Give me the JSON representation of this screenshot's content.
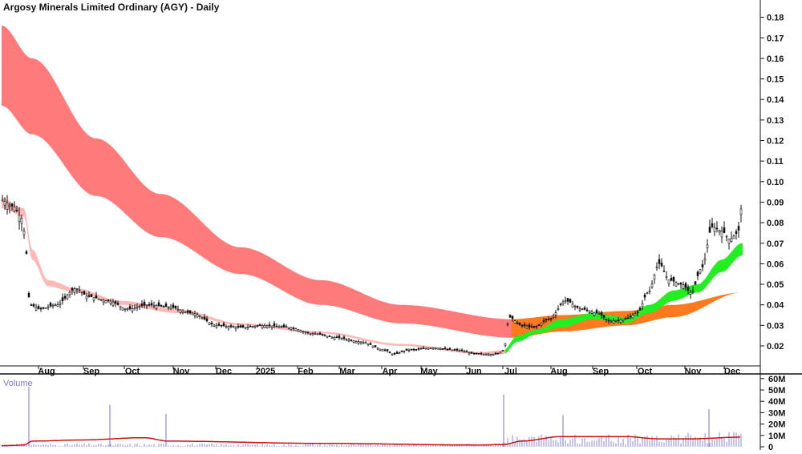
{
  "chart_data": [
    {
      "type": "candlestick",
      "title": "Argosy Minerals Limited Ordinary (AGY) - Daily",
      "y_ticks": [
        0.02,
        0.03,
        0.04,
        0.05,
        0.06,
        0.07,
        0.08,
        0.09,
        0.1,
        0.11,
        0.12,
        0.13,
        0.14,
        0.15,
        0.16,
        0.17,
        0.18
      ],
      "y_tick_labels": [
        "0.02",
        "0.03",
        "0.04",
        "0.05",
        "0.06",
        "0.07",
        "0.08",
        "0.09",
        "0.10",
        "0.11",
        "0.12",
        "0.13",
        "0.14",
        "0.15",
        "0.16",
        "0.17",
        "0.18"
      ],
      "ylim": [
        0.0,
        0.185
      ],
      "x_tick_labels": [
        "Aug",
        "Sep",
        "Oct",
        "Nov",
        "Dec",
        "2025",
        "Feb",
        "Mar",
        "Apr",
        "May",
        "Jun",
        "Jul",
        "Aug",
        "Sep",
        "Oct",
        "Nov",
        "Dec"
      ],
      "grid": false,
      "colors": {
        "long_term_band": "#ff7a7a",
        "short_term_band_bearish": "#ffb8b8",
        "long_term_band_bullish": "#ff7a1e",
        "short_term_band_bullish": "#22ee22",
        "candle": "#111111"
      },
      "price_path": [
        {
          "period": "Jul 2024",
          "close": 0.09
        },
        {
          "period": "late Jul 2024",
          "close": 0.04
        },
        {
          "period": "Sep 2024",
          "close": 0.045
        },
        {
          "period": "Oct 2024",
          "close": 0.038
        },
        {
          "period": "Nov 2024",
          "close": 0.038
        },
        {
          "period": "Dec 2024",
          "close": 0.03
        },
        {
          "period": "Jan 2025",
          "close": 0.03
        },
        {
          "period": "Feb 2025",
          "close": 0.026
        },
        {
          "period": "Mar 2025",
          "close": 0.022
        },
        {
          "period": "Apr 2025",
          "close": 0.016
        },
        {
          "period": "May 2025",
          "close": 0.019
        },
        {
          "period": "Jun 2025",
          "close": 0.015
        },
        {
          "period": "early Jul 2025",
          "close": 0.035
        },
        {
          "period": "Aug 2025",
          "close": 0.038
        },
        {
          "period": "Sep 2025",
          "close": 0.033
        },
        {
          "period": "Oct 2025",
          "close": 0.058
        },
        {
          "period": "Nov 2025",
          "close": 0.05
        },
        {
          "period": "Dec 2025",
          "close": 0.088
        }
      ]
    },
    {
      "type": "bar",
      "title": "Volume",
      "y_ticks": [
        0,
        10,
        20,
        30,
        40,
        50,
        60
      ],
      "y_tick_labels": [
        "0",
        "10M",
        "20M",
        "30M",
        "40M",
        "50M",
        "60M"
      ],
      "ylim": [
        0,
        62
      ],
      "unit": "M",
      "grid": false,
      "colors": {
        "bars": "#8c8cd8",
        "moving_average": "#cc1010"
      },
      "spikes": [
        {
          "period": "Jul 2024",
          "value": 53
        },
        {
          "period": "Sep 2024",
          "value": 37
        },
        {
          "period": "Nov 2024",
          "value": 29
        },
        {
          "period": "Jul 2025",
          "value": 46
        },
        {
          "period": "Aug 2025",
          "value": 28
        },
        {
          "period": "Dec 2025",
          "value": 33
        }
      ],
      "moving_average_level": 8
    }
  ]
}
